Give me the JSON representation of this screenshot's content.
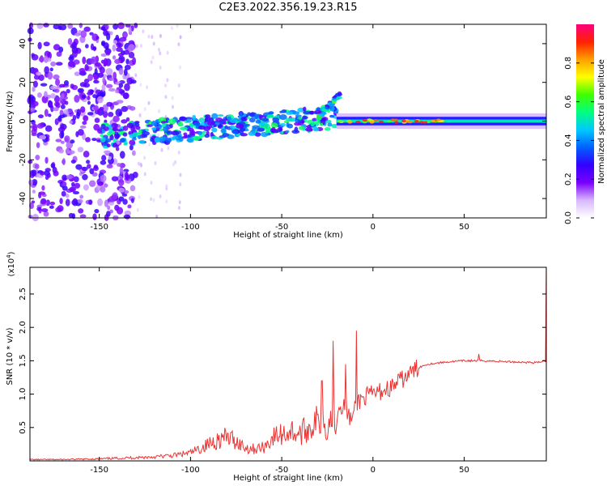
{
  "title": "C2E3.2022.356.19.23.R15",
  "chart_data": [
    {
      "type": "heatmap",
      "title": "C2E3.2022.356.19.23.R15",
      "xlabel": "Height of straight line (km)",
      "ylabel": "Frequency (Hz)",
      "xlim": [
        -188,
        95
      ],
      "ylim": [
        -50,
        50
      ],
      "xticks": [
        -150,
        -100,
        -50,
        0,
        50
      ],
      "yticks": [
        -40,
        -20,
        0,
        20,
        40
      ],
      "colorbar": {
        "label": "Normalized spectral amplitude",
        "range": [
          0.0,
          1.0
        ],
        "ticks": [
          0.0,
          0.2,
          0.4,
          0.6,
          0.8
        ],
        "tick_labels": [
          "0.0",
          "0.2",
          "0.4",
          "0.6",
          "0.8"
        ],
        "colormap": [
          "#ffffff",
          "#d8b8ff",
          "#7a00ff",
          "#3300ff",
          "#0060ff",
          "#00c8ff",
          "#00ff80",
          "#40ff00",
          "#ffff00",
          "#ffa000",
          "#ff2000",
          "#ff0080"
        ]
      },
      "features": [
        {
          "name": "noise cloud",
          "x": [
            -188,
            -130
          ],
          "y": [
            -50,
            50
          ],
          "amplitude": 0.1
        },
        {
          "name": "band",
          "x": [
            -150,
            -20
          ],
          "y_start": -8,
          "y_end": 2,
          "amplitude": 0.4
        },
        {
          "name": "upper branch",
          "x": [
            -30,
            -18
          ],
          "y_start": 2,
          "y_end": 14,
          "amplitude": 0.45
        },
        {
          "name": "carrier",
          "x": [
            -20,
            95
          ],
          "y": 0,
          "amplitude": 0.5
        }
      ]
    },
    {
      "type": "line",
      "xlabel": "Height of straight line (km)",
      "ylabel": "SNR (10 * v/v)",
      "exponent_label": "(x10",
      "exponent_power": "4",
      "exponent_close": ")",
      "xlim": [
        -188,
        95
      ],
      "ylim": [
        0,
        2.9
      ],
      "xticks": [
        -150,
        -100,
        -50,
        0,
        50
      ],
      "yticks": [
        0.5,
        1.0,
        1.5,
        2.0,
        2.5
      ],
      "ytick_labels": [
        "0.5",
        "1.0",
        "1.5",
        "2.0",
        "2.5"
      ],
      "color": "#ee3333",
      "series": [
        {
          "x": [
            -188,
            -170,
            -150,
            -130,
            -120,
            -110,
            -100,
            -95,
            -90,
            -85,
            -80,
            -75,
            -70,
            -65,
            -60,
            -55,
            -50,
            -45,
            -40,
            -35,
            -30,
            -25,
            -20,
            -18,
            -15,
            -12,
            -10,
            -8,
            -5,
            0,
            5,
            10,
            15,
            20,
            25,
            30,
            40,
            50,
            60,
            70,
            80,
            90,
            94
          ],
          "y": [
            0.02,
            0.02,
            0.03,
            0.05,
            0.06,
            0.08,
            0.12,
            0.18,
            0.25,
            0.32,
            0.35,
            0.3,
            0.2,
            0.18,
            0.2,
            0.35,
            0.4,
            0.45,
            0.4,
            0.5,
            0.6,
            0.55,
            0.7,
            0.85,
            0.8,
            0.6,
            0.75,
            0.9,
            0.95,
            1.0,
            1.05,
            1.1,
            1.2,
            1.3,
            1.4,
            1.45,
            1.48,
            1.5,
            1.5,
            1.49,
            1.48,
            1.47,
            1.5
          ]
        }
      ],
      "spikes": [
        {
          "x": -22,
          "y": 1.8
        },
        {
          "x": -9,
          "y": 1.95
        },
        {
          "x": -15,
          "y": 1.45
        },
        {
          "x": -28,
          "y": 1.2
        },
        {
          "x": 58,
          "y": 1.6
        },
        {
          "x": 95,
          "y": 2.9
        }
      ]
    }
  ]
}
